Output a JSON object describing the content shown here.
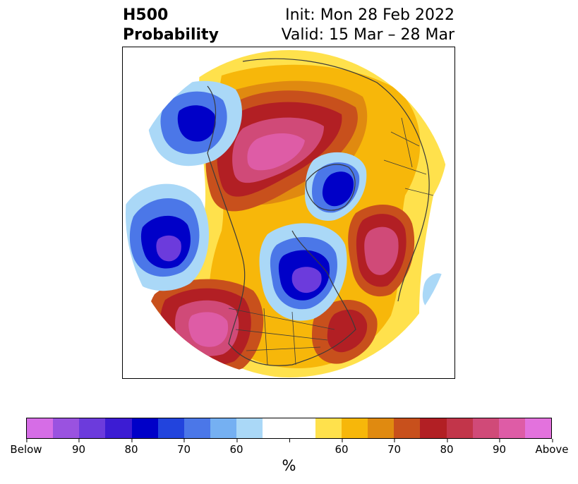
{
  "title": {
    "left_line1": "H500",
    "left_line2": "Probability",
    "right_line1": "Init: Mon 28 Feb 2022",
    "right_line2": "Valid: 15 Mar – 28 Mar"
  },
  "colorbar": {
    "unit_label": "%",
    "colors": [
      "#d66de6",
      "#9a52e0",
      "#6c3bdc",
      "#3c1cd3",
      "#0000c8",
      "#2244dd",
      "#4b77e8",
      "#75b0f2",
      "#aad8f7",
      "#ffffff",
      "#ffffff",
      "#ffe14c",
      "#f7b70a",
      "#e08a10",
      "#c8501c",
      "#b21f24",
      "#c2354a",
      "#d04a78",
      "#de5ca6",
      "#e372dd"
    ],
    "tick_labels": [
      "Below",
      "90",
      "80",
      "70",
      "60",
      "",
      "60",
      "70",
      "80",
      "90",
      "Above"
    ]
  },
  "map": {
    "projection": "polar-stereographic-north",
    "regions": [
      {
        "name": "below-alaska-pacific",
        "category": "below",
        "peak_percent": 80
      },
      {
        "name": "below-north-pacific",
        "category": "below",
        "peak_percent": 90
      },
      {
        "name": "below-canada-hudson-bay",
        "category": "below",
        "peak_percent": 90
      },
      {
        "name": "below-svalbard-arctic",
        "category": "below",
        "peak_percent": 80
      },
      {
        "name": "below-eastern-atlantic",
        "category": "below",
        "peak_percent": 60
      },
      {
        "name": "above-siberia",
        "category": "above",
        "peak_percent": 90
      },
      {
        "name": "above-western-us",
        "category": "above",
        "peak_percent": 90
      },
      {
        "name": "above-north-atlantic",
        "category": "above",
        "peak_percent": 90
      },
      {
        "name": "above-eastern-us-atlantic",
        "category": "above",
        "peak_percent": 80
      }
    ]
  }
}
